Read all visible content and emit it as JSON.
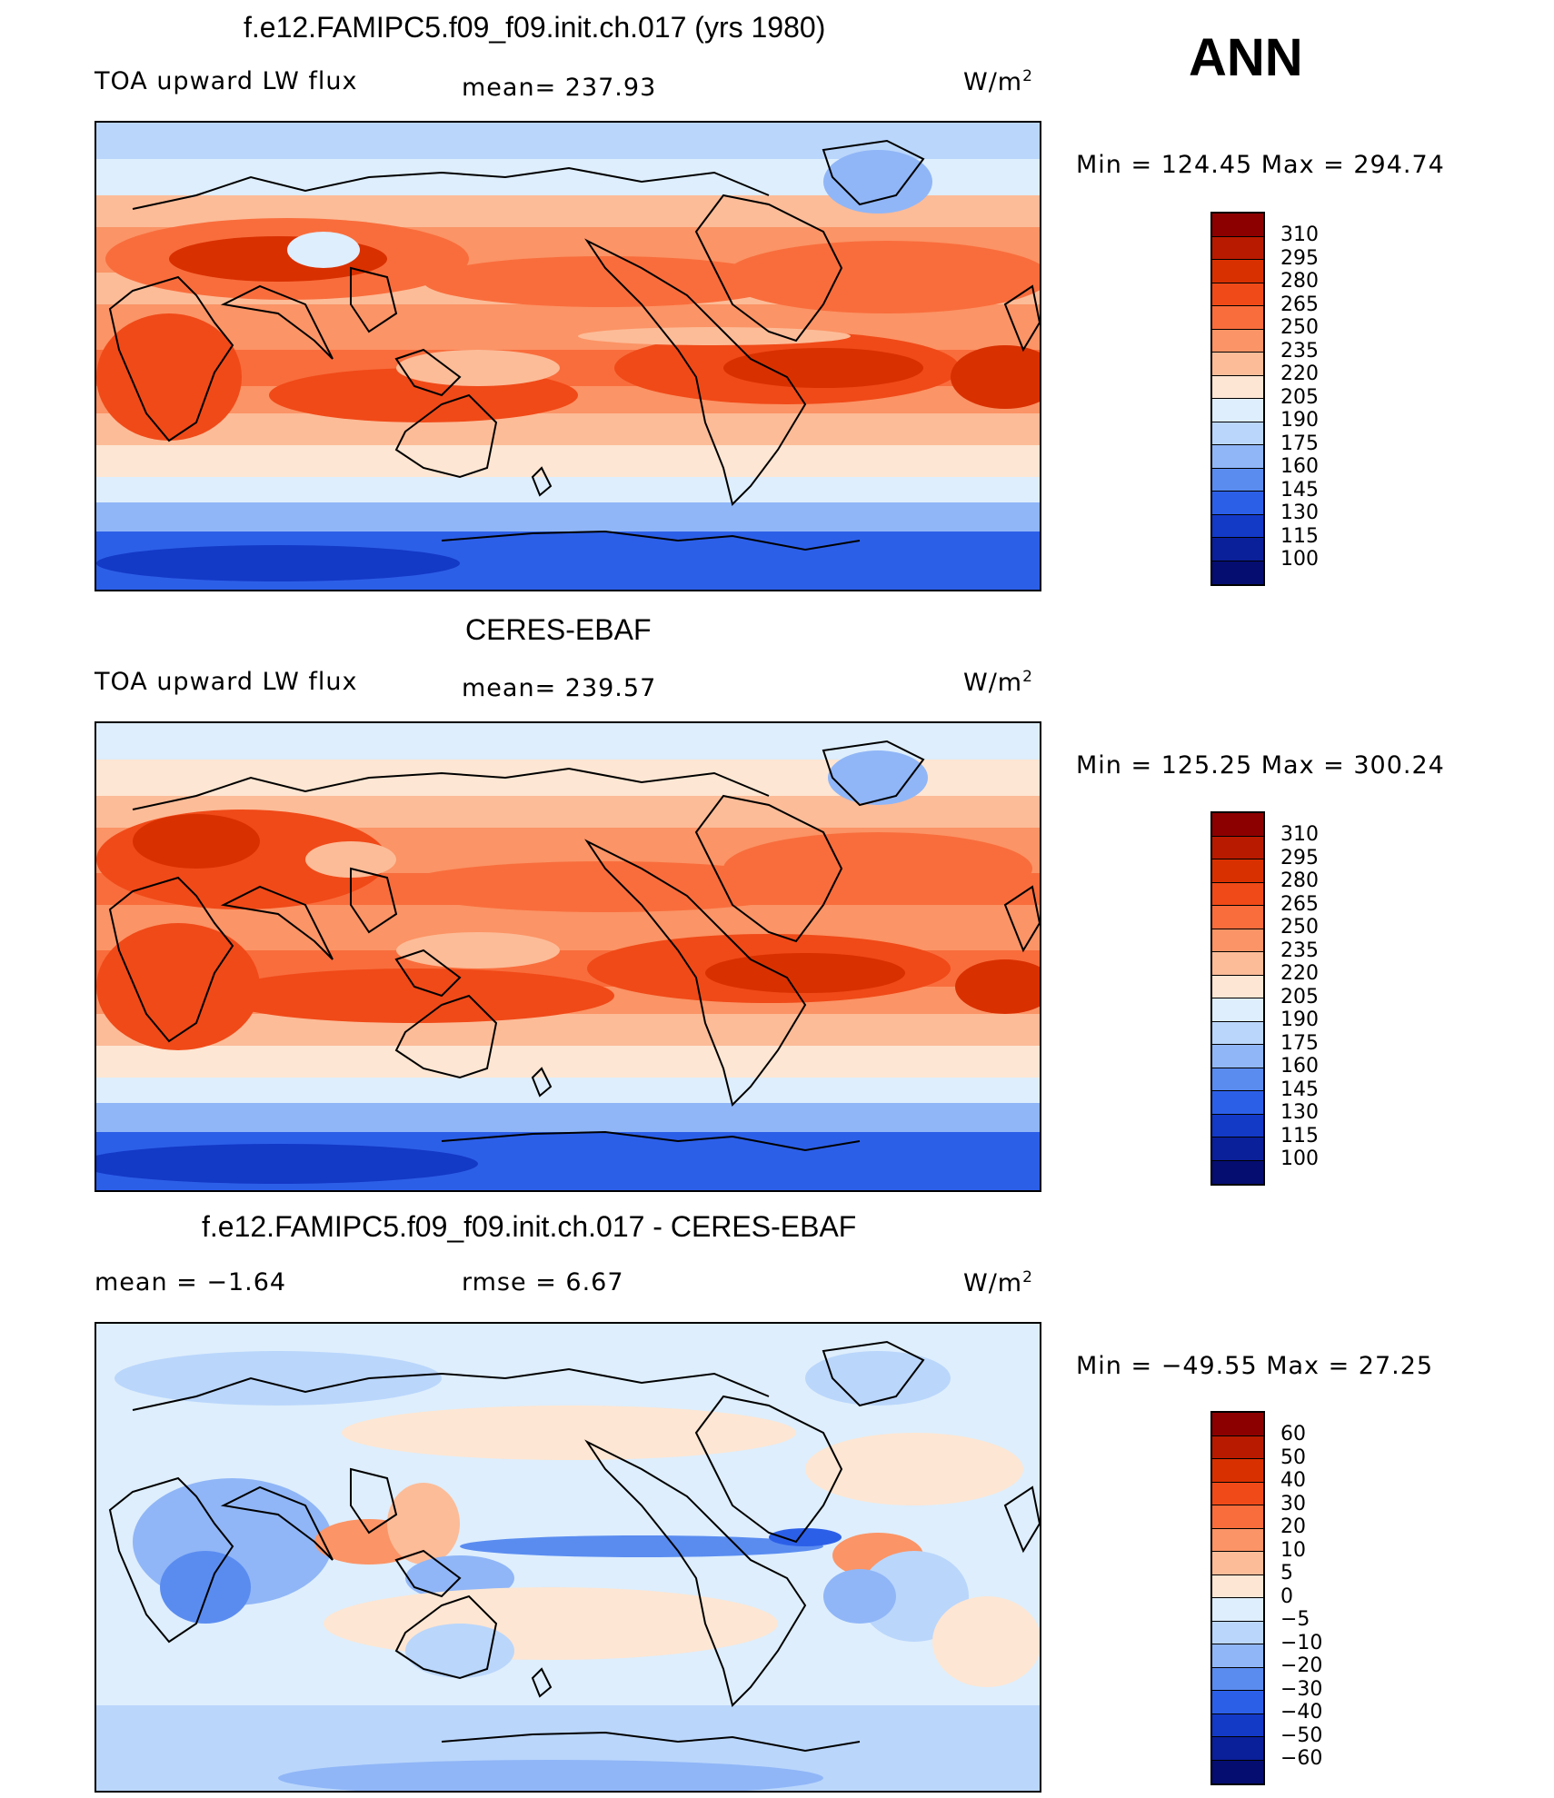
{
  "season": "ANN",
  "panels": [
    {
      "title": "f.e12.FAMIPC5.f09_f09.init.ch.017 (yrs 1980)",
      "left_label": "TOA upward LW flux",
      "mid_label": "mean=  237.93",
      "units": "W/m",
      "units_exp": "2",
      "minmax": "Min  =  124.45  Max  =  294.74",
      "colorbar": {
        "labels": [
          "310",
          "295",
          "280",
          "265",
          "250",
          "235",
          "220",
          "205",
          "190",
          "175",
          "160",
          "145",
          "130",
          "115",
          "100"
        ],
        "colors": [
          "#8c0000",
          "#b81a00",
          "#d93000",
          "#f04a18",
          "#f96d3c",
          "#fb9466",
          "#fcbc98",
          "#fde6d3",
          "#deeefc",
          "#bad6fb",
          "#90b6f7",
          "#5a8cf0",
          "#2c5fe8",
          "#1339c7",
          "#0a1f9a",
          "#050d70"
        ]
      }
    },
    {
      "title": "CERES-EBAF",
      "left_label": "TOA upward LW flux",
      "mid_label": "mean=  239.57",
      "units": "W/m",
      "units_exp": "2",
      "minmax": "Min  =  125.25  Max  =  300.24",
      "colorbar": {
        "labels": [
          "310",
          "295",
          "280",
          "265",
          "250",
          "235",
          "220",
          "205",
          "190",
          "175",
          "160",
          "145",
          "130",
          "115",
          "100"
        ],
        "colors": [
          "#8c0000",
          "#b81a00",
          "#d93000",
          "#f04a18",
          "#f96d3c",
          "#fb9466",
          "#fcbc98",
          "#fde6d3",
          "#deeefc",
          "#bad6fb",
          "#90b6f7",
          "#5a8cf0",
          "#2c5fe8",
          "#1339c7",
          "#0a1f9a",
          "#050d70"
        ]
      }
    },
    {
      "title": "f.e12.FAMIPC5.f09_f09.init.ch.017 - CERES-EBAF",
      "left_label": "mean =   −1.64",
      "mid_label": "rmse =    6.67",
      "units": "W/m",
      "units_exp": "2",
      "minmax": "Min  =  −49.55  Max  =   27.25",
      "colorbar": {
        "labels": [
          "60",
          "50",
          "40",
          "30",
          "20",
          "10",
          "5",
          "0",
          "−5",
          "−10",
          "−20",
          "−30",
          "−40",
          "−50",
          "−60"
        ],
        "colors": [
          "#8c0000",
          "#b81a00",
          "#d93000",
          "#f04a18",
          "#f96d3c",
          "#fb9466",
          "#fcbc98",
          "#fde6d3",
          "#deeefc",
          "#bad6fb",
          "#90b6f7",
          "#5a8cf0",
          "#2c5fe8",
          "#1339c7",
          "#0a1f9a",
          "#050d70"
        ]
      }
    }
  ]
}
